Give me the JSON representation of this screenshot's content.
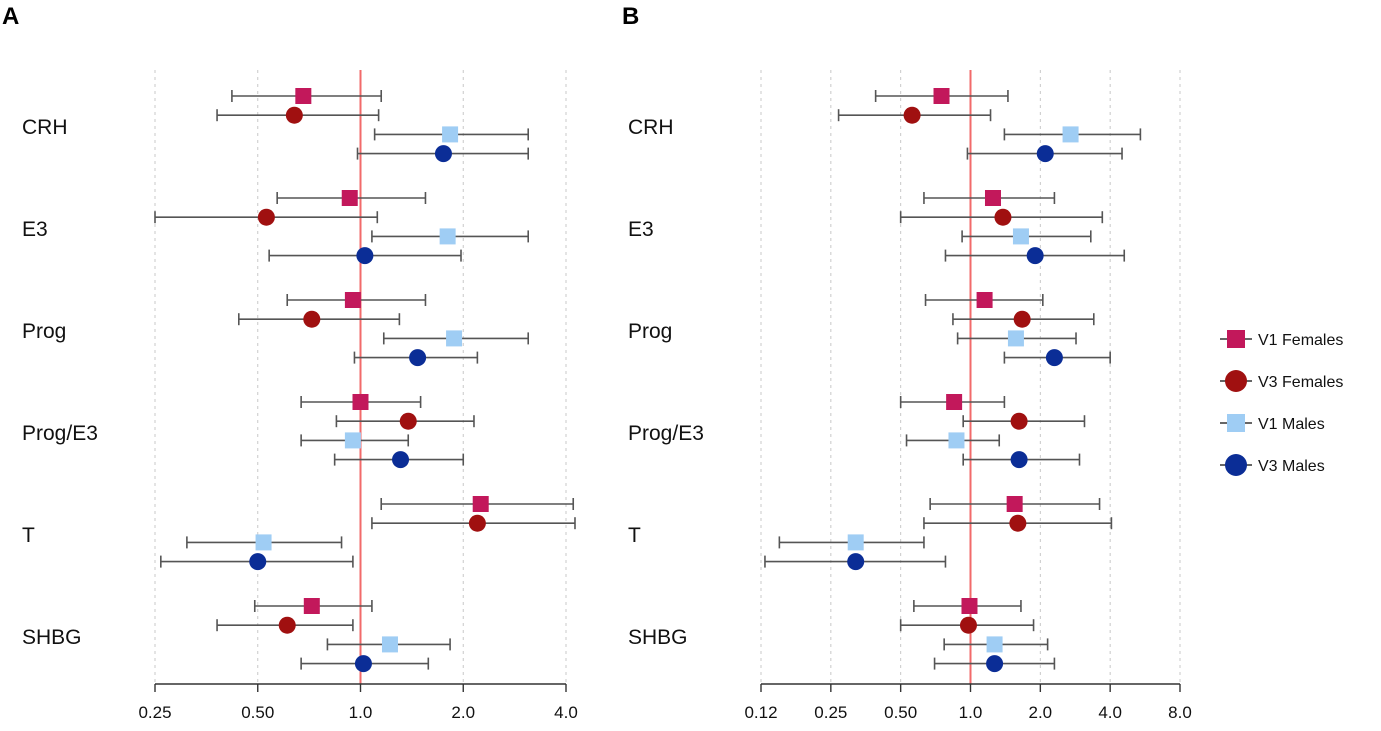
{
  "series_styles": [
    {
      "name": "V1 Females",
      "shape": "square",
      "color": "#c2185b"
    },
    {
      "name": "V3 Females",
      "shape": "circle",
      "color": "#a01010"
    },
    {
      "name": "V1 Males",
      "shape": "square",
      "color": "#9fcdf4"
    },
    {
      "name": "V3 Males",
      "shape": "circle",
      "color": "#0b2d96"
    }
  ],
  "legend": {
    "labels": [
      "V1 Females",
      "V3 Females",
      "V1 Males",
      "V3 Males"
    ],
    "placement": "right"
  },
  "chart_data": [
    {
      "type": "forest",
      "panel": "A",
      "x_scale": "log2",
      "xlim": [
        0.25,
        4.0
      ],
      "reference_line": 1.0,
      "xticks": [
        0.25,
        0.5,
        1.0,
        2.0,
        4.0
      ],
      "xtick_labels": [
        "0.25",
        "0.50",
        "1.0",
        "2.0",
        "4.0"
      ],
      "rows": [
        {
          "label": "CRH",
          "estimates": [
            {
              "series": "V1 Females",
              "value": 0.68,
              "lo": 0.42,
              "hi": 1.15
            },
            {
              "series": "V3 Females",
              "value": 0.64,
              "lo": 0.38,
              "hi": 1.13
            },
            {
              "series": "V1 Males",
              "value": 1.83,
              "lo": 1.1,
              "hi": 3.1
            },
            {
              "series": "V3 Males",
              "value": 1.75,
              "lo": 0.98,
              "hi": 3.1
            }
          ]
        },
        {
          "label": "E3",
          "estimates": [
            {
              "series": "V1 Females",
              "value": 0.93,
              "lo": 0.57,
              "hi": 1.55
            },
            {
              "series": "V3 Females",
              "value": 0.53,
              "lo": 0.25,
              "hi": 1.12
            },
            {
              "series": "V1 Males",
              "value": 1.8,
              "lo": 1.08,
              "hi": 3.1
            },
            {
              "series": "V3 Males",
              "value": 1.03,
              "lo": 0.54,
              "hi": 1.97
            }
          ]
        },
        {
          "label": "Prog",
          "estimates": [
            {
              "series": "V1 Females",
              "value": 0.95,
              "lo": 0.61,
              "hi": 1.55
            },
            {
              "series": "V3 Females",
              "value": 0.72,
              "lo": 0.44,
              "hi": 1.3
            },
            {
              "series": "V1 Males",
              "value": 1.88,
              "lo": 1.17,
              "hi": 3.1
            },
            {
              "series": "V3 Males",
              "value": 1.47,
              "lo": 0.96,
              "hi": 2.2
            }
          ]
        },
        {
          "label": "Prog/E3",
          "estimates": [
            {
              "series": "V1 Females",
              "value": 1.0,
              "lo": 0.67,
              "hi": 1.5
            },
            {
              "series": "V3 Females",
              "value": 1.38,
              "lo": 0.85,
              "hi": 2.15
            },
            {
              "series": "V1 Males",
              "value": 0.95,
              "lo": 0.67,
              "hi": 1.38
            },
            {
              "series": "V3 Males",
              "value": 1.31,
              "lo": 0.84,
              "hi": 2.0
            }
          ]
        },
        {
          "label": "T",
          "estimates": [
            {
              "series": "V1 Females",
              "value": 2.25,
              "lo": 1.15,
              "hi": 4.2
            },
            {
              "series": "V3 Females",
              "value": 2.2,
              "lo": 1.08,
              "hi": 4.25
            },
            {
              "series": "V1 Males",
              "value": 0.52,
              "lo": 0.31,
              "hi": 0.88
            },
            {
              "series": "V3 Males",
              "value": 0.5,
              "lo": 0.26,
              "hi": 0.95
            }
          ]
        },
        {
          "label": "SHBG",
          "estimates": [
            {
              "series": "V1 Females",
              "value": 0.72,
              "lo": 0.49,
              "hi": 1.08
            },
            {
              "series": "V3 Females",
              "value": 0.61,
              "lo": 0.38,
              "hi": 0.95
            },
            {
              "series": "V1 Males",
              "value": 1.22,
              "lo": 0.8,
              "hi": 1.83
            },
            {
              "series": "V3 Males",
              "value": 1.02,
              "lo": 0.67,
              "hi": 1.58
            }
          ]
        }
      ]
    },
    {
      "type": "forest",
      "panel": "B",
      "x_scale": "log2",
      "xlim": [
        0.125,
        8.0
      ],
      "reference_line": 1.0,
      "xticks": [
        0.125,
        0.25,
        0.5,
        1.0,
        2.0,
        4.0,
        8.0
      ],
      "xtick_labels": [
        "0.12",
        "0.25",
        "0.50",
        "1.0",
        "2.0",
        "4.0",
        "8.0"
      ],
      "rows": [
        {
          "label": "CRH",
          "estimates": [
            {
              "series": "V1 Females",
              "value": 0.75,
              "lo": 0.39,
              "hi": 1.45
            },
            {
              "series": "V3 Females",
              "value": 0.56,
              "lo": 0.27,
              "hi": 1.22
            },
            {
              "series": "V1 Males",
              "value": 2.7,
              "lo": 1.4,
              "hi": 5.4
            },
            {
              "series": "V3 Males",
              "value": 2.1,
              "lo": 0.97,
              "hi": 4.5
            }
          ]
        },
        {
          "label": "E3",
          "estimates": [
            {
              "series": "V1 Females",
              "value": 1.25,
              "lo": 0.63,
              "hi": 2.3
            },
            {
              "series": "V3 Females",
              "value": 1.38,
              "lo": 0.5,
              "hi": 3.7
            },
            {
              "series": "V1 Males",
              "value": 1.65,
              "lo": 0.92,
              "hi": 3.3
            },
            {
              "series": "V3 Males",
              "value": 1.9,
              "lo": 0.78,
              "hi": 4.6
            }
          ]
        },
        {
          "label": "Prog",
          "estimates": [
            {
              "series": "V1 Females",
              "value": 1.15,
              "lo": 0.64,
              "hi": 2.05
            },
            {
              "series": "V3 Females",
              "value": 1.67,
              "lo": 0.84,
              "hi": 3.4
            },
            {
              "series": "V1 Males",
              "value": 1.57,
              "lo": 0.88,
              "hi": 2.85
            },
            {
              "series": "V3 Males",
              "value": 2.3,
              "lo": 1.4,
              "hi": 4.0
            }
          ]
        },
        {
          "label": "Prog/E3",
          "estimates": [
            {
              "series": "V1 Females",
              "value": 0.85,
              "lo": 0.5,
              "hi": 1.4
            },
            {
              "series": "V3 Females",
              "value": 1.62,
              "lo": 0.93,
              "hi": 3.1
            },
            {
              "series": "V1 Males",
              "value": 0.87,
              "lo": 0.53,
              "hi": 1.33
            },
            {
              "series": "V3 Males",
              "value": 1.62,
              "lo": 0.93,
              "hi": 2.95
            }
          ]
        },
        {
          "label": "T",
          "estimates": [
            {
              "series": "V1 Females",
              "value": 1.55,
              "lo": 0.67,
              "hi": 3.6
            },
            {
              "series": "V3 Females",
              "value": 1.6,
              "lo": 0.63,
              "hi": 4.05
            },
            {
              "series": "V1 Males",
              "value": 0.32,
              "lo": 0.15,
              "hi": 0.63
            },
            {
              "series": "V3 Males",
              "value": 0.32,
              "lo": 0.13,
              "hi": 0.78
            }
          ]
        },
        {
          "label": "SHBG",
          "estimates": [
            {
              "series": "V1 Females",
              "value": 0.99,
              "lo": 0.57,
              "hi": 1.65
            },
            {
              "series": "V3 Females",
              "value": 0.98,
              "lo": 0.5,
              "hi": 1.87
            },
            {
              "series": "V1 Males",
              "value": 1.27,
              "lo": 0.77,
              "hi": 2.15
            },
            {
              "series": "V3 Males",
              "value": 1.27,
              "lo": 0.7,
              "hi": 2.3
            }
          ]
        }
      ]
    }
  ]
}
